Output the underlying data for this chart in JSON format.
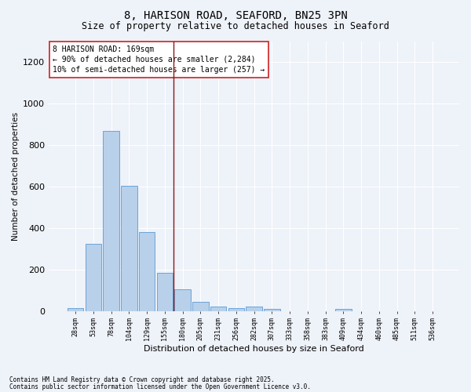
{
  "title1": "8, HARISON ROAD, SEAFORD, BN25 3PN",
  "title2": "Size of property relative to detached houses in Seaford",
  "xlabel": "Distribution of detached houses by size in Seaford",
  "ylabel": "Number of detached properties",
  "categories": [
    "28sqm",
    "53sqm",
    "78sqm",
    "104sqm",
    "129sqm",
    "155sqm",
    "180sqm",
    "205sqm",
    "231sqm",
    "256sqm",
    "282sqm",
    "307sqm",
    "333sqm",
    "358sqm",
    "383sqm",
    "409sqm",
    "434sqm",
    "460sqm",
    "485sqm",
    "511sqm",
    "536sqm"
  ],
  "values": [
    13,
    325,
    868,
    605,
    380,
    185,
    105,
    45,
    22,
    15,
    22,
    10,
    0,
    0,
    0,
    12,
    0,
    0,
    0,
    0,
    0
  ],
  "bar_color": "#b8d0ea",
  "bar_edge_color": "#5b9bd5",
  "ylim": [
    0,
    1300
  ],
  "yticks": [
    0,
    200,
    400,
    600,
    800,
    1000,
    1200
  ],
  "vline_x_index": 5.5,
  "annotation_box_text": "8 HARISON ROAD: 169sqm\n← 90% of detached houses are smaller (2,284)\n10% of semi-detached houses are larger (257) →",
  "vline_color": "#8b1a1a",
  "footer1": "Contains HM Land Registry data © Crown copyright and database right 2025.",
  "footer2": "Contains public sector information licensed under the Open Government Licence v3.0.",
  "bg_color": "#eef2f9",
  "grid_color": "#ffffff",
  "title1_fontsize": 10,
  "title2_fontsize": 8.5,
  "ylabel_fontsize": 7.5,
  "xlabel_fontsize": 8,
  "ytick_fontsize": 8,
  "xtick_fontsize": 6,
  "ann_fontsize": 7,
  "footer_fontsize": 5.5
}
